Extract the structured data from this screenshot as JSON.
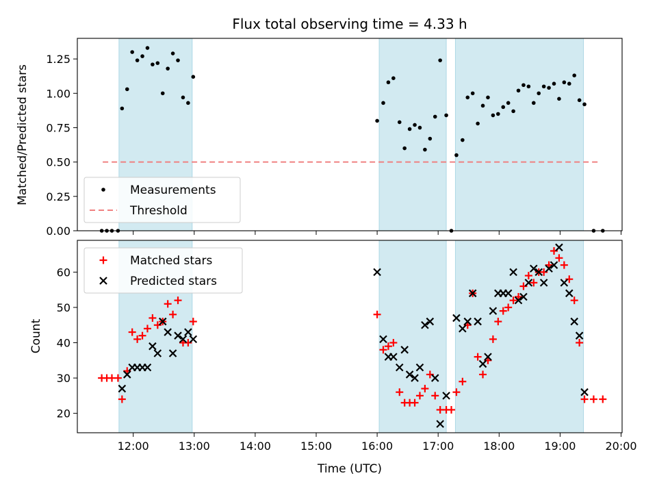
{
  "title": "Flux total observing time = 4.33 h",
  "chart_data": [
    {
      "type": "scatter",
      "ylabel": "Matched/Predicted stars",
      "xlabel": "",
      "ylim": [
        0,
        1.4
      ],
      "xlim": [
        "11:05",
        "20:01"
      ],
      "yticks": [
        0,
        0.25,
        0.5,
        0.75,
        1.0,
        1.25
      ],
      "ytick_labels": [
        "0.00",
        "0.25",
        "0.50",
        "0.75",
        "1.00",
        "1.25"
      ],
      "legend_position": "lower-left",
      "shaded_intervals": [
        [
          "11:46",
          "12:58"
        ],
        [
          "16:02",
          "17:08"
        ],
        [
          "17:17",
          "19:23"
        ]
      ],
      "shade_color": "#add8e6",
      "series": [
        {
          "name": "Measurements",
          "marker": "dot",
          "color": "#000000",
          "x": [
            "11:29",
            "11:34",
            "11:39",
            "11:45",
            "11:49",
            "11:54",
            "11:59",
            "12:04",
            "12:09",
            "12:14",
            "12:19",
            "12:24",
            "12:29",
            "12:34",
            "12:39",
            "12:44",
            "12:49",
            "12:54",
            "12:59",
            "16:00",
            "16:06",
            "16:11",
            "16:16",
            "16:22",
            "16:27",
            "16:32",
            "16:37",
            "16:42",
            "16:47",
            "16:52",
            "16:57",
            "17:02",
            "17:08",
            "17:13",
            "17:18",
            "17:24",
            "17:29",
            "17:34",
            "17:39",
            "17:44",
            "17:49",
            "17:54",
            "17:59",
            "18:04",
            "18:09",
            "18:14",
            "18:19",
            "18:24",
            "18:29",
            "18:34",
            "18:39",
            "18:44",
            "18:49",
            "18:54",
            "18:59",
            "19:04",
            "19:09",
            "19:14",
            "19:19",
            "19:24",
            "19:33",
            "19:42"
          ],
          "y": [
            0.0,
            0.0,
            0.0,
            0.0,
            0.89,
            1.03,
            1.3,
            1.24,
            1.27,
            1.33,
            1.21,
            1.22,
            1.0,
            1.18,
            1.29,
            1.24,
            0.97,
            0.93,
            1.12,
            0.8,
            0.93,
            1.08,
            1.11,
            0.79,
            0.6,
            0.74,
            0.77,
            0.75,
            0.59,
            0.67,
            0.83,
            1.24,
            0.84,
            0.0,
            0.55,
            0.66,
            0.97,
            1.0,
            0.78,
            0.91,
            0.97,
            0.84,
            0.85,
            0.9,
            0.93,
            0.87,
            1.02,
            1.06,
            1.05,
            0.93,
            1.0,
            1.05,
            1.04,
            1.07,
            0.96,
            1.08,
            1.07,
            1.13,
            0.95,
            0.92,
            0.0,
            0.0
          ]
        },
        {
          "name": "Threshold",
          "marker": "dashed-line",
          "color": "#f08080",
          "x": [
            "11:30",
            "19:38"
          ],
          "y": [
            0.5,
            0.5
          ]
        }
      ]
    },
    {
      "type": "scatter",
      "ylabel": "Count",
      "xlabel": "Time (UTC)",
      "ylim": [
        14.5,
        69
      ],
      "xlim": [
        "11:05",
        "20:01"
      ],
      "yticks": [
        20,
        30,
        40,
        50,
        60
      ],
      "ytick_labels": [
        "20",
        "30",
        "40",
        "50",
        "60"
      ],
      "xticks": [
        "12:00",
        "13:00",
        "14:00",
        "15:00",
        "16:00",
        "17:00",
        "18:00",
        "19:00",
        "20:00"
      ],
      "legend_position": "upper-left",
      "shaded_intervals": [
        [
          "11:46",
          "12:58"
        ],
        [
          "16:02",
          "17:08"
        ],
        [
          "17:17",
          "19:23"
        ]
      ],
      "shade_color": "#add8e6",
      "series": [
        {
          "name": "Matched stars",
          "marker": "plus",
          "color": "#ff0000",
          "x": [
            "11:29",
            "11:34",
            "11:39",
            "11:45",
            "11:49",
            "11:54",
            "11:59",
            "12:04",
            "12:09",
            "12:14",
            "12:19",
            "12:24",
            "12:29",
            "12:34",
            "12:39",
            "12:44",
            "12:49",
            "12:54",
            "12:59",
            "16:00",
            "16:06",
            "16:11",
            "16:16",
            "16:22",
            "16:27",
            "16:32",
            "16:37",
            "16:42",
            "16:47",
            "16:52",
            "16:57",
            "17:02",
            "17:08",
            "17:13",
            "17:18",
            "17:24",
            "17:29",
            "17:34",
            "17:39",
            "17:44",
            "17:49",
            "17:54",
            "17:59",
            "18:04",
            "18:09",
            "18:14",
            "18:19",
            "18:24",
            "18:29",
            "18:34",
            "18:39",
            "18:44",
            "18:49",
            "18:54",
            "18:59",
            "19:04",
            "19:09",
            "19:14",
            "19:19",
            "19:24",
            "19:33",
            "19:42"
          ],
          "y": [
            30,
            30,
            30,
            30,
            24,
            32,
            43,
            41,
            42,
            44,
            47,
            45,
            46,
            51,
            48,
            52,
            40,
            40,
            46,
            48,
            38,
            39,
            40,
            26,
            23,
            23,
            23,
            25,
            27,
            31,
            25,
            21,
            21,
            21,
            26,
            29,
            45,
            54,
            36,
            31,
            35,
            41,
            46,
            49,
            50,
            52,
            53,
            56,
            59,
            57,
            60,
            60,
            62,
            66,
            64,
            62,
            58,
            52,
            40,
            24,
            24,
            24
          ]
        },
        {
          "name": "Predicted stars",
          "marker": "x",
          "color": "#000000",
          "x": [
            "11:49",
            "11:54",
            "11:59",
            "12:04",
            "12:09",
            "12:14",
            "12:19",
            "12:24",
            "12:29",
            "12:34",
            "12:39",
            "12:44",
            "12:49",
            "12:54",
            "12:59",
            "16:00",
            "16:06",
            "16:11",
            "16:16",
            "16:22",
            "16:27",
            "16:32",
            "16:37",
            "16:42",
            "16:47",
            "16:52",
            "16:57",
            "17:02",
            "17:08",
            "17:18",
            "17:24",
            "17:29",
            "17:34",
            "17:39",
            "17:44",
            "17:49",
            "17:54",
            "17:59",
            "18:04",
            "18:09",
            "18:14",
            "18:19",
            "18:24",
            "18:29",
            "18:34",
            "18:39",
            "18:44",
            "18:49",
            "18:54",
            "18:59",
            "19:04",
            "19:09",
            "19:14",
            "19:19",
            "19:24"
          ],
          "y": [
            27,
            31,
            33,
            33,
            33,
            33,
            39,
            37,
            46,
            43,
            37,
            42,
            41,
            43,
            41,
            60,
            41,
            36,
            36,
            33,
            38,
            31,
            30,
            33,
            45,
            46,
            30,
            17,
            25,
            47,
            44,
            46,
            54,
            46,
            34,
            36,
            49,
            54,
            54,
            54,
            60,
            52,
            53,
            57,
            61,
            60,
            57,
            61,
            62,
            67,
            57,
            54,
            46,
            42,
            26
          ]
        }
      ]
    }
  ]
}
